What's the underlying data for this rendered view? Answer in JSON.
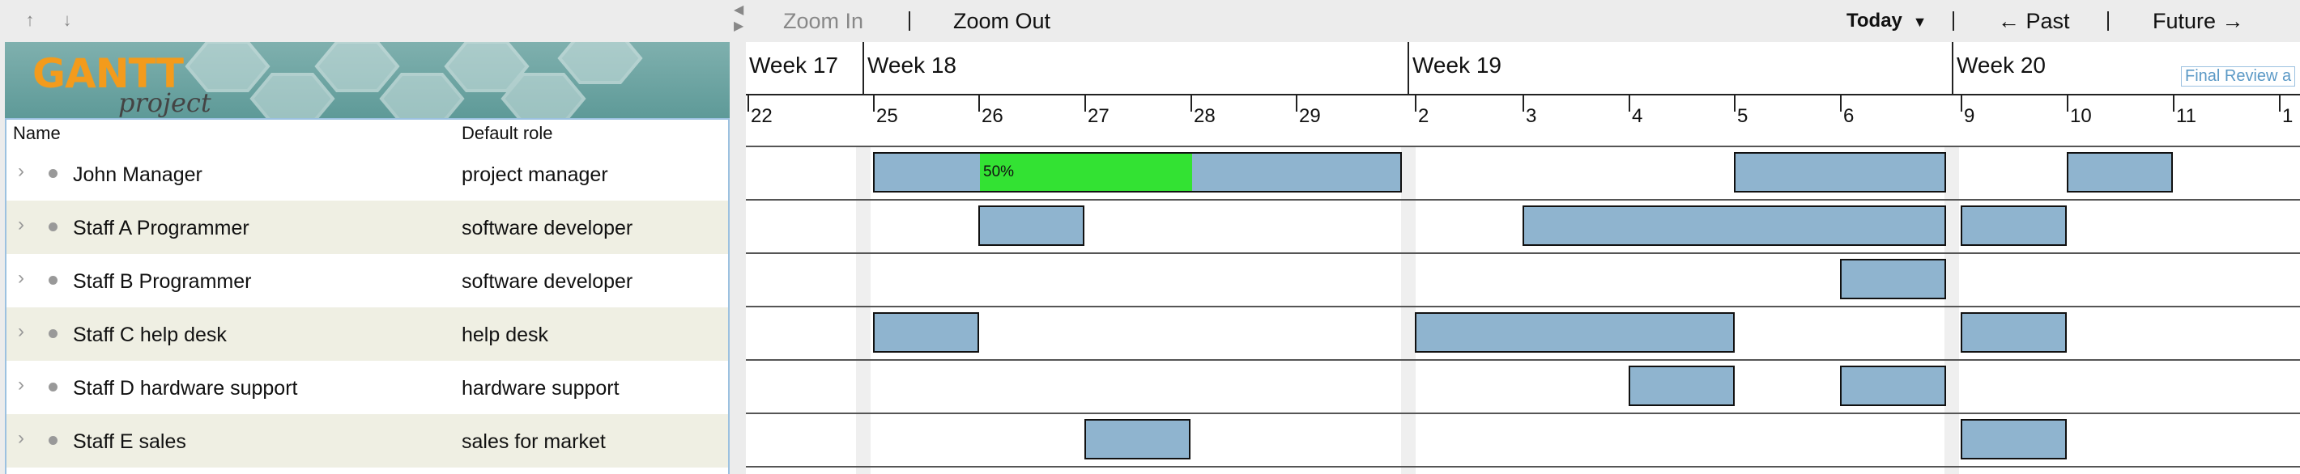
{
  "app": {
    "logo_main": "GANTT",
    "logo_sub": "project"
  },
  "left_toolbar": {
    "up_icon": "arrow-up-icon",
    "down_icon": "arrow-down-icon",
    "up_glyph": "↑",
    "down_glyph": "↓"
  },
  "resources_table": {
    "columns": [
      "Name",
      "Default role"
    ],
    "rows": [
      {
        "name": "John Manager",
        "role": "project manager"
      },
      {
        "name": "Staff A Programmer",
        "role": "software developer"
      },
      {
        "name": "Staff B Programmer",
        "role": "software developer"
      },
      {
        "name": "Staff C help desk",
        "role": "help desk"
      },
      {
        "name": "Staff D hardware support",
        "role": "hardware support"
      },
      {
        "name": "Staff E sales",
        "role": "sales for market"
      }
    ]
  },
  "chart_toolbar": {
    "zoom_in": "Zoom In",
    "zoom_out": "Zoom Out",
    "today": "Today",
    "past": "← Past",
    "future": "Future →"
  },
  "timeline": {
    "weeks": [
      "Week 17",
      "Week 18",
      "Week 19",
      "Week 20"
    ],
    "days": [
      "22",
      "25",
      "26",
      "27",
      "28",
      "29",
      "2",
      "3",
      "4",
      "5",
      "6",
      "9",
      "10",
      "11",
      "1"
    ],
    "milestone_label": "Final Review a"
  },
  "assignments": [
    {
      "row": 0,
      "start": "25",
      "end": "29",
      "progress": "50%"
    },
    {
      "row": 0,
      "start": "5",
      "end": "6"
    },
    {
      "row": 0,
      "start": "10",
      "end": "10"
    },
    {
      "row": 1,
      "start": "26",
      "end": "26"
    },
    {
      "row": 1,
      "start": "3",
      "end": "6"
    },
    {
      "row": 1,
      "start": "9",
      "end": "9"
    },
    {
      "row": 2,
      "start": "6",
      "end": "6"
    },
    {
      "row": 3,
      "start": "25",
      "end": "25"
    },
    {
      "row": 3,
      "start": "2",
      "end": "4"
    },
    {
      "row": 3,
      "start": "9",
      "end": "9"
    },
    {
      "row": 4,
      "start": "4",
      "end": "4"
    },
    {
      "row": 4,
      "start": "6",
      "end": "6"
    },
    {
      "row": 5,
      "start": "27",
      "end": "27"
    },
    {
      "row": 5,
      "start": "9",
      "end": "9"
    }
  ]
}
